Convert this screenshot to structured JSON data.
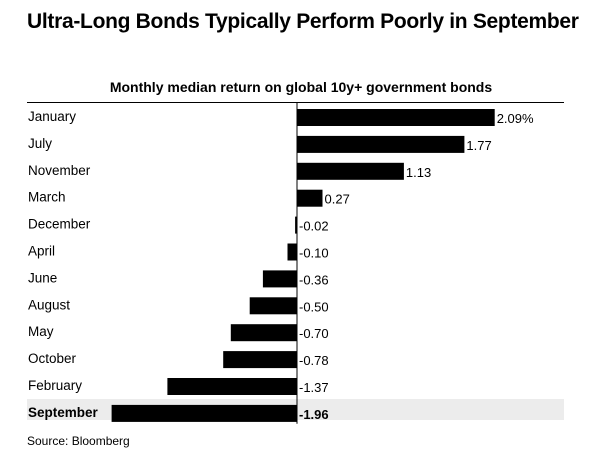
{
  "header": {
    "title": "Ultra-Long Bonds Typically Perform Poorly in September",
    "subtitle": "Monthly median return on global 10y+ government bonds"
  },
  "footer": {
    "source": "Source: Bloomberg"
  },
  "colors": {
    "bar": "#000000",
    "highlight_row": "#ececec",
    "text": "#000000"
  },
  "chart_data": {
    "type": "bar",
    "orientation": "horizontal",
    "title": "Ultra-Long Bonds Typically Perform Poorly in September",
    "subtitle": "Monthly median return on global 10y+ government bonds",
    "categories": [
      "January",
      "July",
      "November",
      "March",
      "December",
      "April",
      "June",
      "August",
      "May",
      "October",
      "February",
      "September"
    ],
    "values": [
      2.09,
      1.77,
      1.13,
      0.27,
      -0.02,
      -0.1,
      -0.36,
      -0.5,
      -0.7,
      -0.78,
      -1.37,
      -1.96
    ],
    "value_labels": [
      "2.09%",
      "1.77",
      "1.13",
      "0.27",
      "-0.02",
      "-0.10",
      "-0.36",
      "-0.50",
      "-0.70",
      "-0.78",
      "-1.37",
      "-1.96"
    ],
    "highlight": "September",
    "xlim": [
      -1.96,
      2.09
    ],
    "grid": false,
    "legend": "none"
  }
}
